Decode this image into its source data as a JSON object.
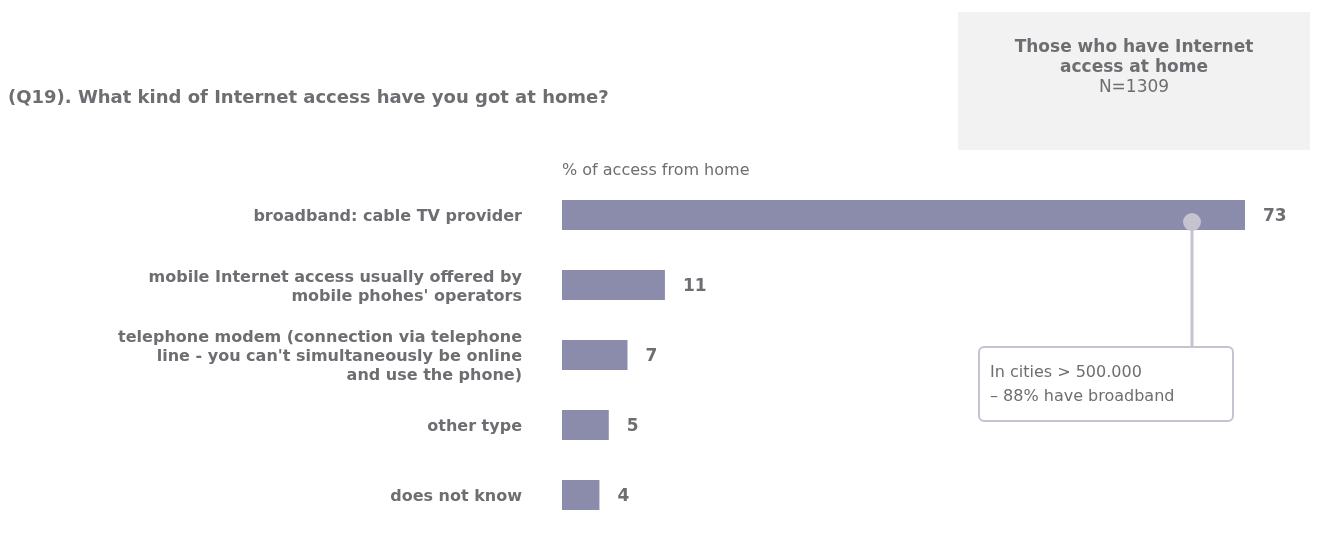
{
  "chart_data": {
    "type": "bar",
    "orientation": "horizontal",
    "title": "(Q19). What kind of Internet access have you got at home?",
    "subtitle": "Those who have Internet access at home\nN=1309",
    "xlabel": "% of access from home",
    "categories": [
      "broadband: cable TV provider",
      "mobile Internet access usually offered by mobile phohes' operators",
      "telephone modem (connection via telephone line - you can't simultaneously be online and use the phone)",
      "other type",
      "does not know"
    ],
    "values": [
      73,
      11,
      7,
      5,
      4
    ],
    "color": "#8b8bab",
    "data_labels": true,
    "annotations": [
      "In cities > 500.000\n– 88% have broadband"
    ]
  }
}
